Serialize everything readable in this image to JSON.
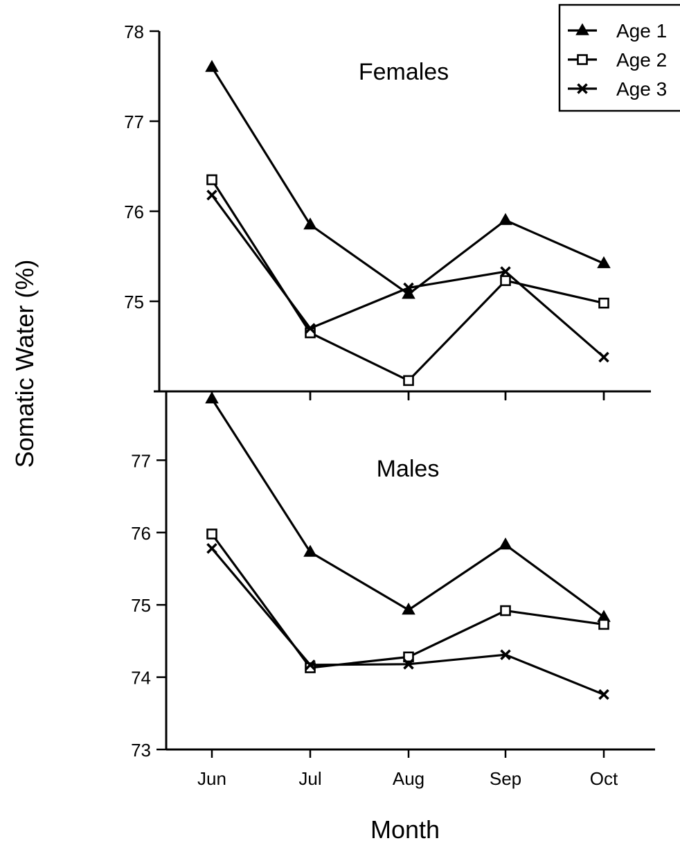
{
  "chart_data": {
    "type": "line",
    "ylabel": "Somatic Water (%)",
    "xlabel": "Month",
    "categories": [
      "Jun",
      "Jul",
      "Aug",
      "Sep",
      "Oct"
    ],
    "legend": {
      "placement": "top-right",
      "entries": [
        {
          "label": "Age 1",
          "marker": "filled-triangle"
        },
        {
          "label": "Age 2",
          "marker": "open-square"
        },
        {
          "label": "Age 3",
          "marker": "x-cross"
        }
      ]
    },
    "panels": [
      {
        "title": "Females",
        "ylim": [
          74,
          78
        ],
        "yticks": [
          75,
          76,
          77,
          78
        ],
        "series": [
          {
            "name": "Age 1",
            "values": [
              77.6,
              75.85,
              75.08,
              75.9,
              75.42
            ]
          },
          {
            "name": "Age 2",
            "values": [
              76.35,
              74.65,
              74.12,
              75.23,
              74.98
            ]
          },
          {
            "name": "Age 3",
            "values": [
              76.18,
              74.7,
              75.15,
              75.33,
              74.38
            ]
          }
        ]
      },
      {
        "title": "Males",
        "ylim": [
          73,
          77.9
        ],
        "yticks": [
          73,
          74,
          75,
          76,
          77
        ],
        "series": [
          {
            "name": "Age 1",
            "values": [
              77.85,
              75.73,
              74.93,
              75.83,
              74.83
            ]
          },
          {
            "name": "Age 2",
            "values": [
              75.98,
              74.13,
              74.28,
              74.92,
              74.73
            ]
          },
          {
            "name": "Age 3",
            "values": [
              75.78,
              74.17,
              74.18,
              74.31,
              73.76
            ]
          }
        ]
      }
    ],
    "grid": false
  }
}
